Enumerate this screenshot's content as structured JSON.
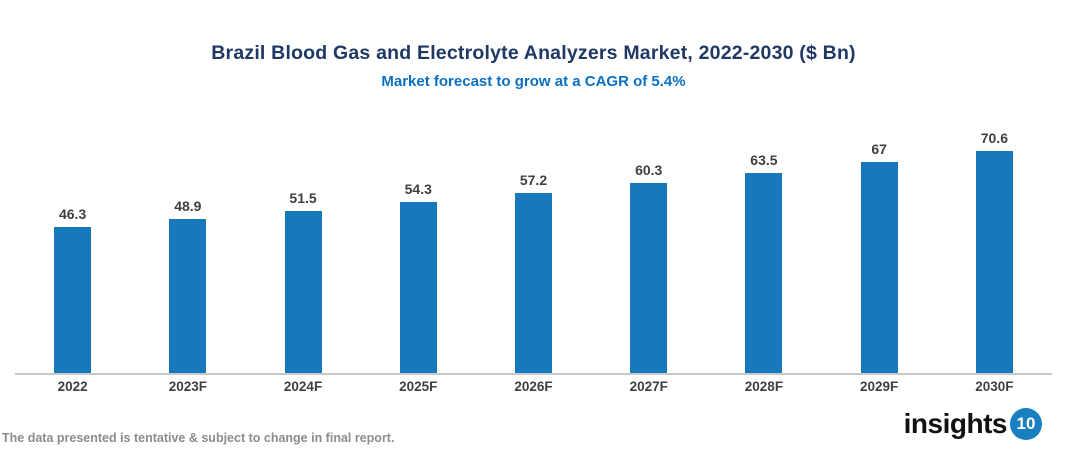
{
  "header": {
    "title": "Brazil Blood Gas and Electrolyte Analyzers Market, 2022-2030 ($ Bn)",
    "subtitle": "Market forecast to grow at a CAGR of 5.4%"
  },
  "chart_data": {
    "type": "bar",
    "title": "Brazil Blood Gas and Electrolyte Analyzers Market, 2022-2030 ($ Bn)",
    "subtitle": "Market forecast to grow at a CAGR of 5.4%",
    "categories": [
      "2022",
      "2023F",
      "2024F",
      "2025F",
      "2026F",
      "2027F",
      "2028F",
      "2029F",
      "2030F"
    ],
    "values": [
      46.3,
      48.9,
      51.5,
      54.3,
      57.2,
      60.3,
      63.5,
      67,
      70.6
    ],
    "value_labels": [
      "46.3",
      "48.9",
      "51.5",
      "54.3",
      "57.2",
      "60.3",
      "63.5",
      "67",
      "70.6"
    ],
    "xlabel": "",
    "ylabel": "",
    "ylim": [
      0,
      75
    ],
    "grid": false,
    "legend": false,
    "data_labels_position": "above-bars"
  },
  "colors": {
    "title": "#1f3864",
    "subtitle": "#0a70c0",
    "bar": "#1878bc",
    "label": "#3f3f3f",
    "axis_line": "#c9c9c9",
    "disclaimer": "#8c8c8c",
    "logo_text": "#111111",
    "logo_badge": "#1a7fc1"
  },
  "footer": {
    "disclaimer": "The data presented is tentative & subject to change in final report.",
    "logo_text": "insights",
    "logo_badge": "10"
  }
}
